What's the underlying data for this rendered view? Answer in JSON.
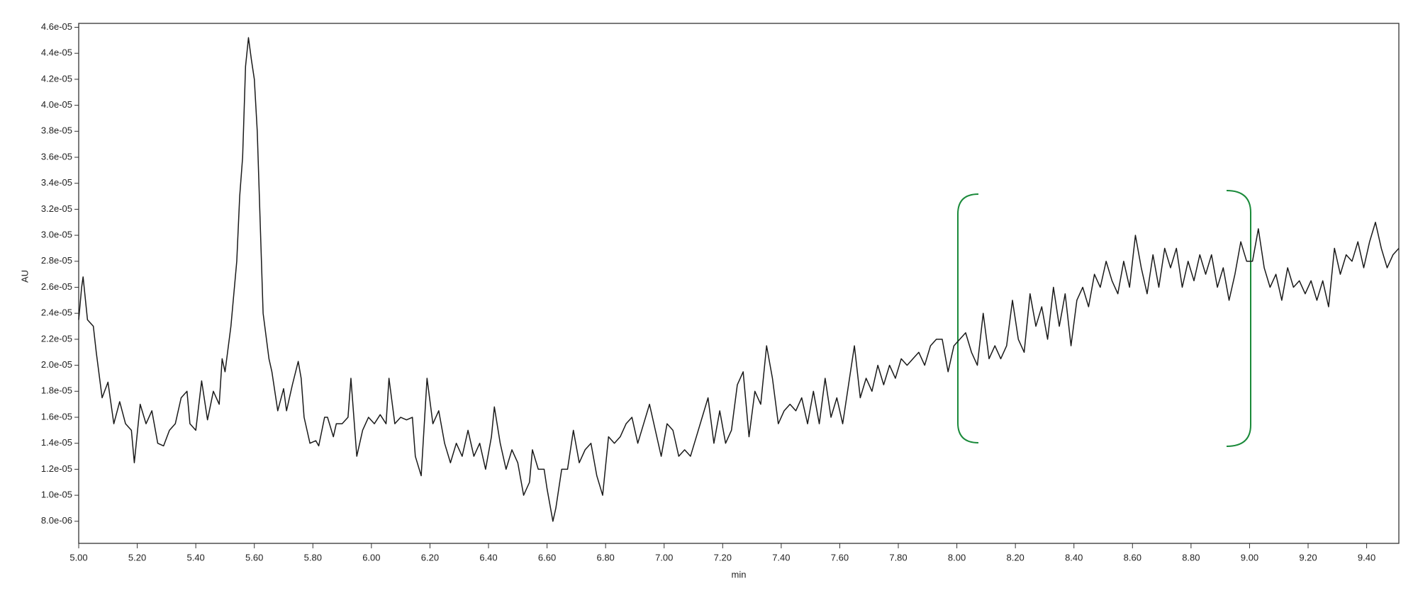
{
  "chart_data": {
    "type": "line",
    "xlabel": "min",
    "ylabel": "AU",
    "color": "#1a1a1a",
    "xlim": [
      5.0,
      9.51
    ],
    "ylim": [
      6.3e-06,
      4.63e-05
    ],
    "xticks": [
      {
        "value": 5.0,
        "label": "5.00"
      },
      {
        "value": 5.2,
        "label": "5.20"
      },
      {
        "value": 5.4,
        "label": "5.40"
      },
      {
        "value": 5.6,
        "label": "5.60"
      },
      {
        "value": 5.8,
        "label": "5.80"
      },
      {
        "value": 6.0,
        "label": "6.00"
      },
      {
        "value": 6.2,
        "label": "6.20"
      },
      {
        "value": 6.4,
        "label": "6.40"
      },
      {
        "value": 6.6,
        "label": "6.60"
      },
      {
        "value": 6.8,
        "label": "6.80"
      },
      {
        "value": 7.0,
        "label": "7.00"
      },
      {
        "value": 7.2,
        "label": "7.20"
      },
      {
        "value": 7.4,
        "label": "7.40"
      },
      {
        "value": 7.6,
        "label": "7.60"
      },
      {
        "value": 7.8,
        "label": "7.80"
      },
      {
        "value": 8.0,
        "label": "8.00"
      },
      {
        "value": 8.2,
        "label": "8.20"
      },
      {
        "value": 8.4,
        "label": "8.40"
      },
      {
        "value": 8.6,
        "label": "8.60"
      },
      {
        "value": 8.8,
        "label": "8.80"
      },
      {
        "value": 9.0,
        "label": "9.00"
      },
      {
        "value": 9.2,
        "label": "9.20"
      },
      {
        "value": 9.4,
        "label": "9.40"
      }
    ],
    "yticks": [
      {
        "value": 8e-06,
        "label": "8.0e-06"
      },
      {
        "value": 1e-05,
        "label": "1.0e-05"
      },
      {
        "value": 1.2e-05,
        "label": "1.2e-05"
      },
      {
        "value": 1.4e-05,
        "label": "1.4e-05"
      },
      {
        "value": 1.6e-05,
        "label": "1.6e-05"
      },
      {
        "value": 1.8e-05,
        "label": "1.8e-05"
      },
      {
        "value": 2e-05,
        "label": "2.0e-05"
      },
      {
        "value": 2.2e-05,
        "label": "2.2e-05"
      },
      {
        "value": 2.4e-05,
        "label": "2.4e-05"
      },
      {
        "value": 2.6e-05,
        "label": "2.6e-05"
      },
      {
        "value": 2.8e-05,
        "label": "2.8e-05"
      },
      {
        "value": 3e-05,
        "label": "3.0e-05"
      },
      {
        "value": 3.2e-05,
        "label": "3.2e-05"
      },
      {
        "value": 3.4e-05,
        "label": "3.4e-05"
      },
      {
        "value": 3.6e-05,
        "label": "3.6e-05"
      },
      {
        "value": 3.8e-05,
        "label": "3.8e-05"
      },
      {
        "value": 4e-05,
        "label": "4.0e-05"
      },
      {
        "value": 4.2e-05,
        "label": "4.2e-05"
      },
      {
        "value": 4.4e-05,
        "label": "4.4e-05"
      },
      {
        "value": 4.6e-05,
        "label": "4.6e-05"
      }
    ],
    "x": [
      5.0,
      5.01,
      5.015,
      5.03,
      5.05,
      5.06,
      5.08,
      5.1,
      5.12,
      5.14,
      5.16,
      5.18,
      5.19,
      5.21,
      5.23,
      5.25,
      5.27,
      5.29,
      5.31,
      5.33,
      5.35,
      5.37,
      5.38,
      5.4,
      5.42,
      5.44,
      5.46,
      5.48,
      5.49,
      5.5,
      5.52,
      5.54,
      5.55,
      5.56,
      5.57,
      5.58,
      5.59,
      5.6,
      5.61,
      5.62,
      5.63,
      5.65,
      5.66,
      5.68,
      5.7,
      5.71,
      5.73,
      5.75,
      5.76,
      5.77,
      5.79,
      5.81,
      5.82,
      5.84,
      5.85,
      5.87,
      5.88,
      5.9,
      5.92,
      5.93,
      5.95,
      5.97,
      5.99,
      6.01,
      6.03,
      6.05,
      6.06,
      6.08,
      6.1,
      6.12,
      6.14,
      6.15,
      6.17,
      6.19,
      6.21,
      6.23,
      6.25,
      6.27,
      6.29,
      6.31,
      6.33,
      6.35,
      6.37,
      6.39,
      6.41,
      6.42,
      6.44,
      6.46,
      6.48,
      6.5,
      6.52,
      6.54,
      6.55,
      6.57,
      6.59,
      6.6,
      6.62,
      6.63,
      6.65,
      6.67,
      6.69,
      6.71,
      6.73,
      6.75,
      6.77,
      6.79,
      6.81,
      6.83,
      6.85,
      6.87,
      6.89,
      6.91,
      6.93,
      6.95,
      6.97,
      6.99,
      7.01,
      7.03,
      7.05,
      7.07,
      7.09,
      7.11,
      7.13,
      7.15,
      7.17,
      7.19,
      7.21,
      7.23,
      7.25,
      7.27,
      7.29,
      7.31,
      7.33,
      7.35,
      7.37,
      7.39,
      7.41,
      7.43,
      7.45,
      7.47,
      7.49,
      7.51,
      7.53,
      7.55,
      7.57,
      7.59,
      7.61,
      7.63,
      7.65,
      7.67,
      7.69,
      7.71,
      7.73,
      7.75,
      7.77,
      7.79,
      7.81,
      7.83,
      7.85,
      7.87,
      7.89,
      7.91,
      7.93,
      7.95,
      7.97,
      7.99,
      8.01,
      8.03,
      8.05,
      8.07,
      8.09,
      8.11,
      8.13,
      8.15,
      8.17,
      8.19,
      8.21,
      8.23,
      8.25,
      8.27,
      8.29,
      8.31,
      8.33,
      8.35,
      8.37,
      8.39,
      8.41,
      8.43,
      8.45,
      8.47,
      8.49,
      8.51,
      8.53,
      8.55,
      8.57,
      8.59,
      8.61,
      8.63,
      8.65,
      8.67,
      8.69,
      8.71,
      8.73,
      8.75,
      8.77,
      8.79,
      8.81,
      8.83,
      8.85,
      8.87,
      8.89,
      8.91,
      8.93,
      8.95,
      8.97,
      8.99,
      9.01,
      9.03,
      9.05,
      9.07,
      9.09,
      9.11,
      9.13,
      9.15,
      9.17,
      9.19,
      9.21,
      9.23,
      9.25,
      9.27,
      9.29,
      9.31,
      9.33,
      9.35,
      9.37,
      9.39,
      9.41,
      9.43,
      9.45,
      9.47,
      9.49,
      9.51
    ],
    "values": [
      2.35e-05,
      2.6e-05,
      2.68e-05,
      2.35e-05,
      2.3e-05,
      2.1e-05,
      1.75e-05,
      1.87e-05,
      1.55e-05,
      1.72e-05,
      1.55e-05,
      1.5e-05,
      1.25e-05,
      1.7e-05,
      1.55e-05,
      1.65e-05,
      1.4e-05,
      1.38e-05,
      1.5e-05,
      1.55e-05,
      1.75e-05,
      1.8e-05,
      1.55e-05,
      1.5e-05,
      1.88e-05,
      1.58e-05,
      1.8e-05,
      1.7e-05,
      2.05e-05,
      1.95e-05,
      2.3e-05,
      2.8e-05,
      3.3e-05,
      3.6e-05,
      4.3e-05,
      4.52e-05,
      4.35e-05,
      4.2e-05,
      3.8e-05,
      3.1e-05,
      2.4e-05,
      2.05e-05,
      1.95e-05,
      1.65e-05,
      1.82e-05,
      1.65e-05,
      1.85e-05,
      2.03e-05,
      1.9e-05,
      1.6e-05,
      1.4e-05,
      1.42e-05,
      1.38e-05,
      1.6e-05,
      1.6e-05,
      1.45e-05,
      1.55e-05,
      1.55e-05,
      1.6e-05,
      1.9e-05,
      1.3e-05,
      1.5e-05,
      1.6e-05,
      1.55e-05,
      1.62e-05,
      1.55e-05,
      1.9e-05,
      1.55e-05,
      1.6e-05,
      1.58e-05,
      1.6e-05,
      1.3e-05,
      1.15e-05,
      1.9e-05,
      1.55e-05,
      1.65e-05,
      1.4e-05,
      1.25e-05,
      1.4e-05,
      1.3e-05,
      1.5e-05,
      1.3e-05,
      1.4e-05,
      1.2e-05,
      1.45e-05,
      1.68e-05,
      1.4e-05,
      1.2e-05,
      1.35e-05,
      1.25e-05,
      1e-05,
      1.1e-05,
      1.35e-05,
      1.2e-05,
      1.2e-05,
      1.05e-05,
      8e-06,
      9e-06,
      1.2e-05,
      1.2e-05,
      1.5e-05,
      1.25e-05,
      1.35e-05,
      1.4e-05,
      1.15e-05,
      1e-05,
      1.45e-05,
      1.4e-05,
      1.45e-05,
      1.55e-05,
      1.6e-05,
      1.4e-05,
      1.55e-05,
      1.7e-05,
      1.5e-05,
      1.3e-05,
      1.55e-05,
      1.5e-05,
      1.3e-05,
      1.35e-05,
      1.3e-05,
      1.45e-05,
      1.6e-05,
      1.75e-05,
      1.4e-05,
      1.65e-05,
      1.4e-05,
      1.5e-05,
      1.85e-05,
      1.95e-05,
      1.45e-05,
      1.8e-05,
      1.7e-05,
      2.15e-05,
      1.9e-05,
      1.55e-05,
      1.65e-05,
      1.7e-05,
      1.65e-05,
      1.75e-05,
      1.55e-05,
      1.8e-05,
      1.55e-05,
      1.9e-05,
      1.6e-05,
      1.75e-05,
      1.55e-05,
      1.85e-05,
      2.15e-05,
      1.75e-05,
      1.9e-05,
      1.8e-05,
      2e-05,
      1.85e-05,
      2e-05,
      1.9e-05,
      2.05e-05,
      2e-05,
      2.05e-05,
      2.1e-05,
      2e-05,
      2.15e-05,
      2.2e-05,
      2.2e-05,
      1.95e-05,
      2.15e-05,
      2.2e-05,
      2.25e-05,
      2.1e-05,
      2e-05,
      2.4e-05,
      2.05e-05,
      2.15e-05,
      2.05e-05,
      2.15e-05,
      2.5e-05,
      2.2e-05,
      2.1e-05,
      2.55e-05,
      2.3e-05,
      2.45e-05,
      2.2e-05,
      2.6e-05,
      2.3e-05,
      2.55e-05,
      2.15e-05,
      2.5e-05,
      2.6e-05,
      2.45e-05,
      2.7e-05,
      2.6e-05,
      2.8e-05,
      2.65e-05,
      2.55e-05,
      2.8e-05,
      2.6e-05,
      3e-05,
      2.75e-05,
      2.55e-05,
      2.85e-05,
      2.6e-05,
      2.9e-05,
      2.75e-05,
      2.9e-05,
      2.6e-05,
      2.8e-05,
      2.65e-05,
      2.85e-05,
      2.7e-05,
      2.85e-05,
      2.6e-05,
      2.75e-05,
      2.5e-05,
      2.7e-05,
      2.95e-05,
      2.8e-05,
      2.8e-05,
      3.05e-05,
      2.75e-05,
      2.6e-05,
      2.7e-05,
      2.5e-05,
      2.75e-05,
      2.6e-05,
      2.65e-05,
      2.55e-05,
      2.65e-05,
      2.5e-05,
      2.65e-05,
      2.45e-05,
      2.9e-05,
      2.7e-05,
      2.85e-05,
      2.8e-05,
      2.95e-05,
      2.75e-05,
      2.95e-05,
      3.1e-05,
      2.9e-05,
      2.75e-05,
      2.85e-05,
      2.9e-05
    ]
  }
}
